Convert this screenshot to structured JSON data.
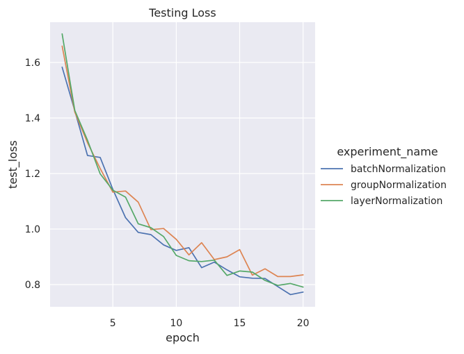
{
  "chart_data": {
    "type": "line",
    "title": "Testing Loss",
    "xlabel": "epoch",
    "ylabel": "test_loss",
    "xlim": [
      0.05,
      20.95
    ],
    "ylim": [
      0.72,
      1.745
    ],
    "xticks": [
      5,
      10,
      15,
      20
    ],
    "yticks": [
      0.8,
      1.0,
      1.2,
      1.4,
      1.6
    ],
    "ytick_labels": [
      "0.8",
      "1.0",
      "1.2",
      "1.4",
      "1.6"
    ],
    "grid": true,
    "legend": {
      "title": "experiment_name",
      "placement": "right"
    },
    "x": [
      1,
      2,
      3,
      4,
      5,
      6,
      7,
      8,
      9,
      10,
      11,
      12,
      13,
      14,
      15,
      16,
      17,
      18,
      19,
      20
    ],
    "series": [
      {
        "name": "batchNormalization",
        "color": "#4c72b0",
        "values": [
          1.583,
          1.426,
          1.265,
          1.258,
          1.143,
          1.041,
          0.988,
          0.98,
          0.943,
          0.923,
          0.933,
          0.861,
          0.881,
          0.853,
          0.828,
          0.823,
          0.822,
          0.793,
          0.764,
          0.773
        ]
      },
      {
        "name": "groupNormalization",
        "color": "#dd8452",
        "values": [
          1.659,
          1.421,
          1.311,
          1.218,
          1.133,
          1.137,
          1.097,
          0.998,
          1.002,
          0.963,
          0.907,
          0.951,
          0.89,
          0.9,
          0.926,
          0.834,
          0.857,
          0.829,
          0.829,
          0.835
        ]
      },
      {
        "name": "layerNormalization",
        "color": "#55a868",
        "values": [
          1.703,
          1.427,
          1.32,
          1.199,
          1.14,
          1.115,
          1.019,
          1.005,
          0.973,
          0.905,
          0.886,
          0.883,
          0.888,
          0.833,
          0.849,
          0.845,
          0.815,
          0.797,
          0.804,
          0.791
        ]
      }
    ]
  }
}
